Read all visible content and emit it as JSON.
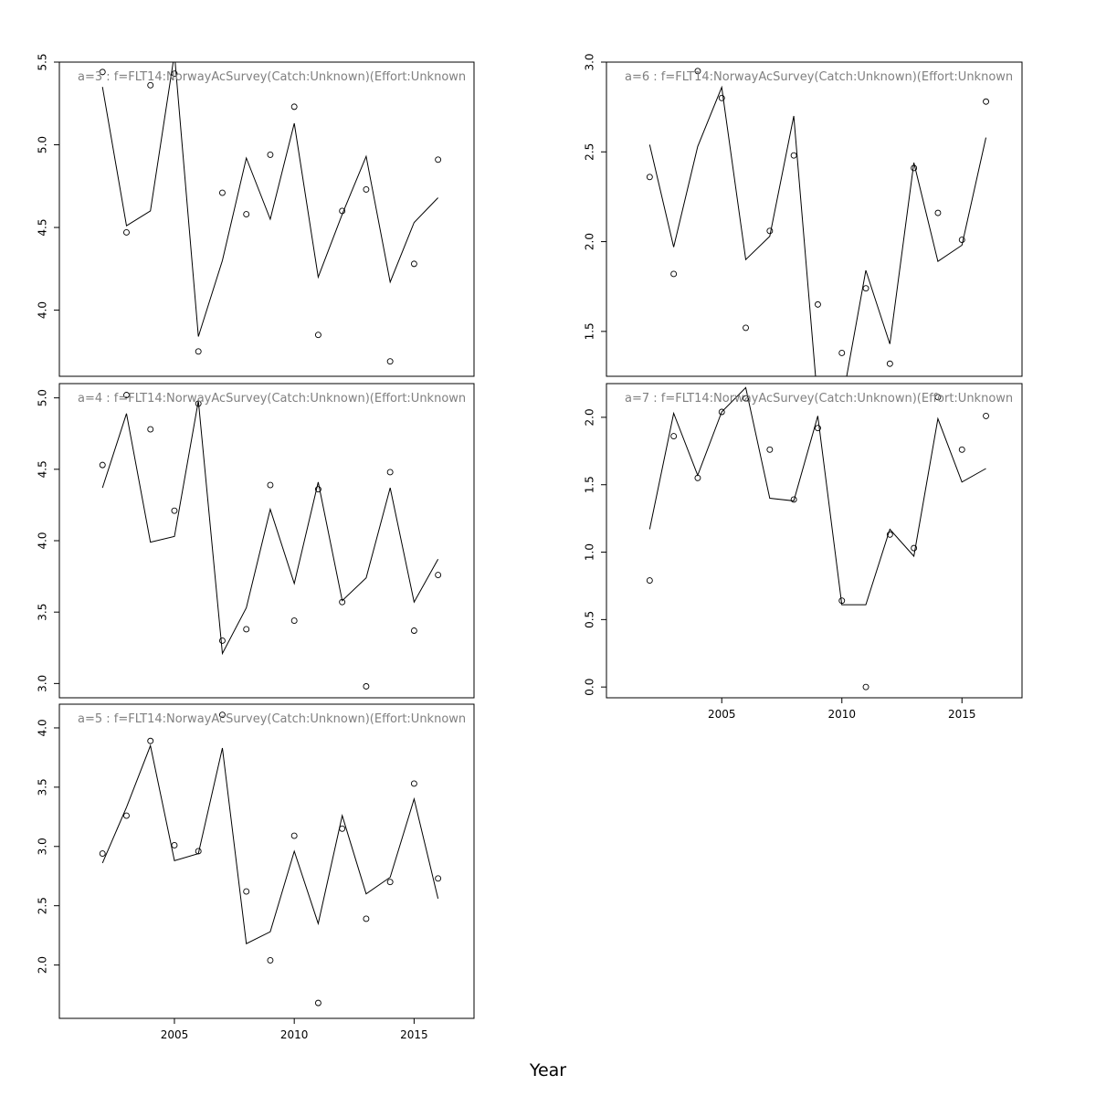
{
  "chart_data": {
    "type": "line",
    "xlabel": "Year",
    "x": [
      2002,
      2003,
      2004,
      2005,
      2006,
      2007,
      2008,
      2009,
      2010,
      2011,
      2012,
      2013,
      2014,
      2015,
      2016
    ],
    "xlim": [
      2000.2,
      2017.5
    ],
    "panels": [
      {
        "label": "a=3  :  f=FLT14:NorwayAcSurvey(Catch:Unknown)(Effort:Unknown",
        "ylim": [
          3.6,
          5.5
        ],
        "yticks": [
          4.0,
          4.5,
          5.0,
          5.5
        ],
        "observed": [
          5.44,
          4.47,
          5.36,
          5.43,
          3.75,
          4.71,
          4.58,
          4.94,
          5.23,
          3.85,
          4.6,
          4.73,
          3.69,
          4.28,
          4.91
        ],
        "fitted": [
          5.35,
          4.51,
          4.6,
          5.55,
          3.84,
          4.3,
          4.92,
          4.55,
          5.13,
          4.2,
          4.58,
          4.93,
          4.17,
          4.53,
          4.68
        ]
      },
      {
        "label": "a=4  :  f=FLT14:NorwayAcSurvey(Catch:Unknown)(Effort:Unknown",
        "ylim": [
          2.9,
          5.1
        ],
        "yticks": [
          3.0,
          3.5,
          4.0,
          4.5,
          5.0
        ],
        "observed": [
          4.53,
          5.02,
          4.78,
          4.21,
          4.96,
          3.3,
          3.38,
          4.39,
          3.44,
          4.36,
          3.57,
          2.98,
          4.48,
          3.37,
          3.76
        ],
        "fitted": [
          4.37,
          4.89,
          3.99,
          4.03,
          4.98,
          3.21,
          3.53,
          4.22,
          3.7,
          4.41,
          3.58,
          3.74,
          4.37,
          3.57,
          3.87
        ]
      },
      {
        "label": "a=5  :  f=FLT14:NorwayAcSurvey(Catch:Unknown)(Effort:Unknown",
        "ylim": [
          1.55,
          4.2
        ],
        "yticks": [
          2.0,
          2.5,
          3.0,
          3.5,
          4.0
        ],
        "observed": [
          2.94,
          3.26,
          3.89,
          3.01,
          2.96,
          4.11,
          2.62,
          2.04,
          3.09,
          1.68,
          3.15,
          2.39,
          2.7,
          3.53,
          2.73
        ],
        "fitted": [
          2.86,
          3.33,
          3.85,
          2.88,
          2.94,
          3.83,
          2.18,
          2.28,
          2.96,
          2.35,
          3.26,
          2.6,
          2.74,
          3.4,
          2.56
        ]
      },
      {
        "label": "a=6  :  f=FLT14:NorwayAcSurvey(Catch:Unknown)(Effort:Unknown",
        "ylim": [
          1.25,
          3.0
        ],
        "yticks": [
          1.5,
          2.0,
          2.5,
          3.0
        ],
        "observed": [
          2.36,
          1.82,
          2.95,
          2.8,
          1.52,
          2.06,
          2.48,
          1.65,
          1.38,
          1.74,
          1.32,
          2.41,
          2.16,
          2.01,
          2.78
        ],
        "fitted": [
          2.54,
          1.97,
          2.53,
          2.86,
          1.9,
          2.03,
          2.7,
          1.1,
          1.1,
          1.84,
          1.43,
          2.44,
          1.89,
          1.98,
          2.58
        ]
      },
      {
        "label": "a=7  :  f=FLT14:NorwayAcSurvey(Catch:Unknown)(Effort:Unknown",
        "ylim": [
          -0.08,
          2.25
        ],
        "yticks": [
          0.0,
          0.5,
          1.0,
          1.5,
          2.0
        ],
        "observed": [
          0.79,
          1.86,
          1.55,
          2.04,
          2.14,
          1.76,
          1.39,
          1.92,
          0.64,
          0.0,
          1.13,
          1.03,
          2.15,
          1.76,
          2.01
        ],
        "fitted": [
          1.17,
          2.03,
          1.57,
          2.04,
          2.22,
          1.4,
          1.38,
          2.01,
          0.61,
          0.61,
          1.17,
          0.97,
          1.99,
          1.52,
          1.62
        ]
      }
    ],
    "xticks": [
      2005,
      2010,
      2015
    ],
    "xtick_labels": [
      "2005",
      "2010",
      "2015"
    ]
  }
}
